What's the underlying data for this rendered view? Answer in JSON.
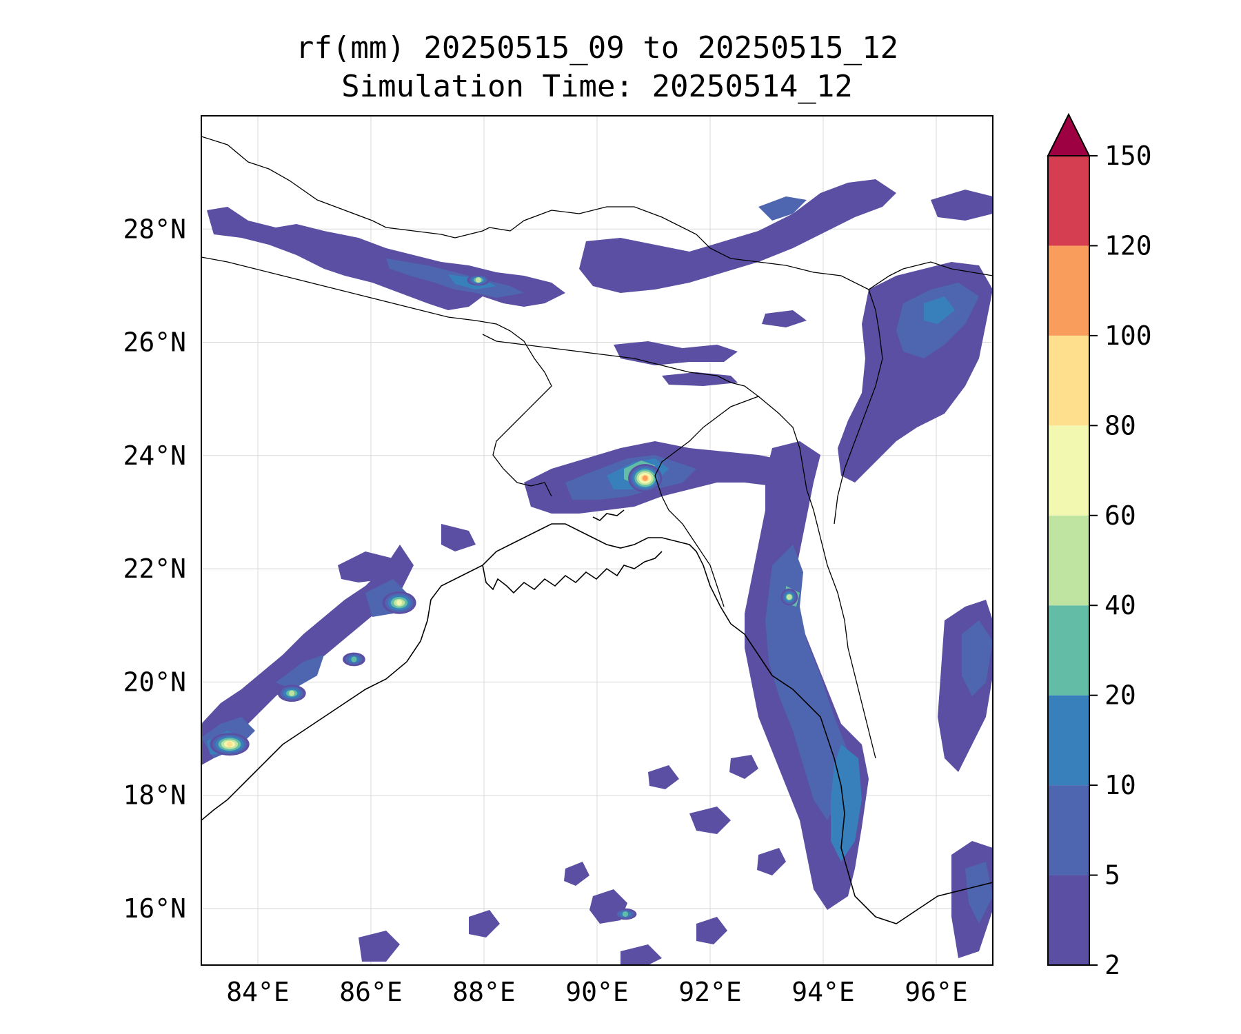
{
  "title_line1": "rf(mm) 20250515_09 to 20250515_12",
  "title_line2": "Simulation Time: 20250514_12",
  "lon_ticks": [
    {
      "value": 84,
      "label": "84°E"
    },
    {
      "value": 86,
      "label": "86°E"
    },
    {
      "value": 88,
      "label": "88°E"
    },
    {
      "value": 90,
      "label": "90°E"
    },
    {
      "value": 92,
      "label": "92°E"
    },
    {
      "value": 94,
      "label": "94°E"
    },
    {
      "value": 96,
      "label": "96°E"
    }
  ],
  "lat_ticks": [
    {
      "value": 16,
      "label": "16°N"
    },
    {
      "value": 18,
      "label": "18°N"
    },
    {
      "value": 20,
      "label": "20°N"
    },
    {
      "value": 22,
      "label": "22°N"
    },
    {
      "value": 24,
      "label": "24°N"
    },
    {
      "value": 26,
      "label": "26°N"
    },
    {
      "value": 28,
      "label": "28°N"
    }
  ],
  "colorbar": {
    "levels": [
      "2",
      "5",
      "10",
      "20",
      "40",
      "60",
      "80",
      "100",
      "120",
      "150"
    ],
    "colors": [
      "#5a4fa2",
      "#4e66b0",
      "#3880bb",
      "#63bca6",
      "#bfe3a0",
      "#f2f8b0",
      "#fddf8e",
      "#f99d5c",
      "#d53e50"
    ],
    "extend_color": "#9e0142"
  },
  "chart_data": {
    "type": "heatmap",
    "variable": "rf(mm)",
    "lon_range": [
      83,
      97
    ],
    "lat_range": [
      15,
      30
    ],
    "rain_cells": [
      {
        "lon": 83.5,
        "lat": 18.9,
        "rx": 0.35,
        "ry": 0.2,
        "level": 6
      },
      {
        "lon": 84.6,
        "lat": 19.8,
        "rx": 0.25,
        "ry": 0.15,
        "level": 4
      },
      {
        "lon": 86.5,
        "lat": 21.4,
        "rx": 0.3,
        "ry": 0.2,
        "level": 5
      },
      {
        "lon": 85.7,
        "lat": 20.4,
        "rx": 0.2,
        "ry": 0.12,
        "level": 3
      },
      {
        "lon": 90.85,
        "lat": 23.6,
        "rx": 0.3,
        "ry": 0.25,
        "level": 7
      },
      {
        "lon": 93.4,
        "lat": 21.5,
        "rx": 0.15,
        "ry": 0.15,
        "level": 4
      },
      {
        "lon": 87.9,
        "lat": 27.1,
        "rx": 0.2,
        "ry": 0.1,
        "level": 4
      },
      {
        "lon": 90.5,
        "lat": 15.9,
        "rx": 0.2,
        "ry": 0.1,
        "level": 3
      }
    ]
  }
}
